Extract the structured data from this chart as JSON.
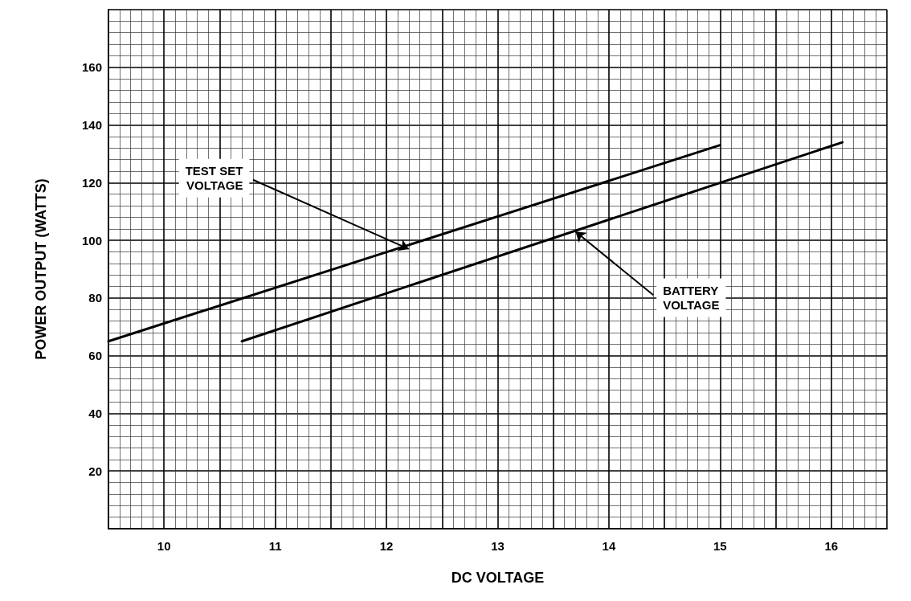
{
  "chart_data": {
    "type": "line",
    "xlabel": "DC VOLTAGE",
    "ylabel": "POWER OUTPUT (WATTS)",
    "series": [
      {
        "color": "#000000",
        "x": [
          9.5,
          15
        ],
        "values": [
          65,
          133
        ]
      },
      {
        "color": "#000000",
        "x": [
          10.7,
          16.1
        ],
        "values": [
          65,
          134
        ]
      }
    ],
    "annotations": [
      {
        "text": "TEST SET\nVOLTAGE",
        "x": 12.2,
        "y": 97
      },
      {
        "text": "BATTERY\nVOLTAGE",
        "x": 13.7,
        "y": 103
      }
    ],
    "xlim": [
      9.5,
      16.5
    ],
    "xticks": [
      10,
      11,
      12,
      13,
      14,
      15,
      16
    ],
    "ylim": [
      0,
      180
    ],
    "yticks": [
      20,
      40,
      60,
      80,
      100,
      120,
      140,
      160
    ],
    "grid": true,
    "marker": "none",
    "line_style": "solid"
  }
}
